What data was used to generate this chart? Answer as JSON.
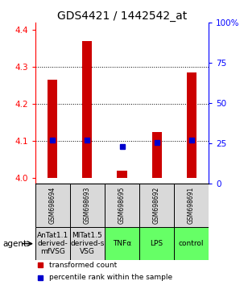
{
  "title": "GDS4421 / 1442542_at",
  "samples": [
    "GSM698694",
    "GSM698693",
    "GSM698695",
    "GSM698692",
    "GSM698691"
  ],
  "agents": [
    "AnTat1.1\nderived-\nmfVSG",
    "MITat1.5\nderived-s\nVSG",
    "TNFα",
    "LPS",
    "control"
  ],
  "agent_colors": [
    "#d9d9d9",
    "#d9d9d9",
    "#66ff66",
    "#66ff66",
    "#66ff66"
  ],
  "red_values": [
    4.265,
    4.37,
    4.02,
    4.125,
    4.285
  ],
  "blue_values": [
    4.1025,
    4.1025,
    4.085,
    4.095,
    4.1025
  ],
  "bar_base": 4.0,
  "ylim_left": [
    3.985,
    4.42
  ],
  "ylim_right": [
    0,
    100
  ],
  "yticks_left": [
    4.0,
    4.1,
    4.2,
    4.3,
    4.4
  ],
  "yticks_right": [
    0,
    25,
    50,
    75,
    100
  ],
  "bar_color": "#cc0000",
  "dot_color": "#0000cc",
  "background_color": "#ffffff",
  "legend_red": "transformed count",
  "legend_blue": "percentile rank within the sample",
  "title_fontsize": 10,
  "tick_fontsize": 7.5,
  "sample_fontsize": 5.5,
  "agent_fontsize": 6.5,
  "legend_fontsize": 6.5
}
